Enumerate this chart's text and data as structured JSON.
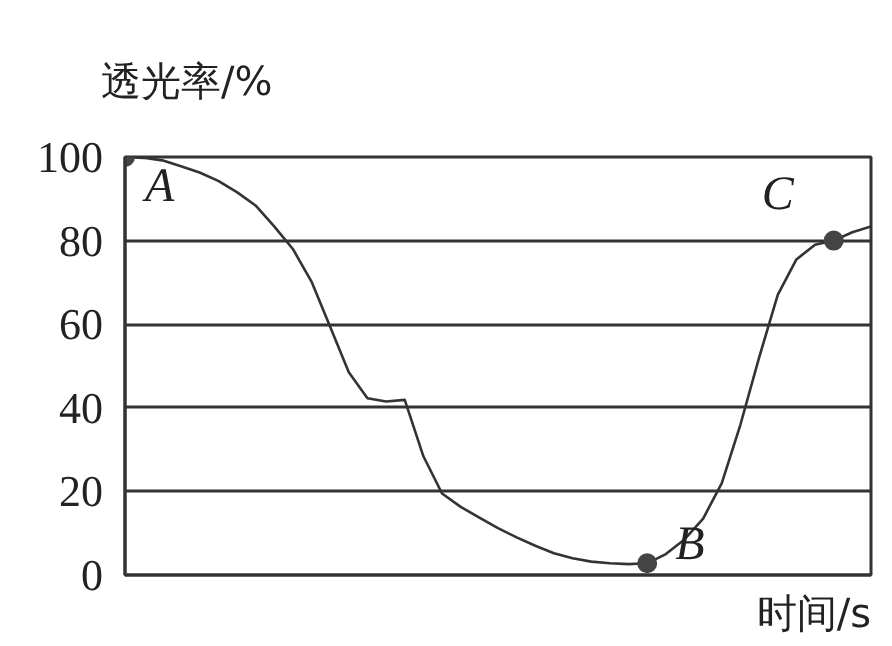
{
  "chart_data": {
    "type": "line",
    "xlabel": "时间/s",
    "ylabel": "透光率/%",
    "categories": [
      null,
      null,
      null,
      null,
      null,
      null,
      null,
      null,
      null,
      null,
      null,
      null,
      null,
      null,
      null,
      null,
      null,
      null,
      null,
      null,
      null,
      null,
      null,
      null,
      null,
      null,
      null,
      null,
      null,
      null,
      null,
      null,
      null,
      null,
      null,
      null,
      null,
      null,
      null,
      null,
      null
    ],
    "ylim": [
      0,
      100
    ],
    "yticks": [
      0,
      20,
      40,
      60,
      80,
      100
    ],
    "tick_labels": "y",
    "grid": "y",
    "line_style": "solid",
    "series": [
      {
        "color": "#333333",
        "values": [
          100,
          99.8,
          99.2,
          97.8,
          96.3,
          94.3,
          91.6,
          88.4,
          83.4,
          78,
          70.2,
          59.4,
          48.5,
          42.3,
          41.5,
          41.9,
          28.4,
          19.5,
          16.3,
          13.7,
          11.2,
          9,
          7,
          5.2,
          4,
          3.2,
          2.8,
          2.6,
          2.8,
          5,
          8.5,
          13.5,
          22,
          36,
          52,
          67,
          75.5,
          79,
          80,
          82,
          83.4
        ]
      },
      {
        "type": "scatter",
        "color": "#444444",
        "marker": "circle",
        "values": [
          100,
          null,
          null,
          null,
          null,
          null,
          null,
          null,
          null,
          null,
          null,
          null,
          null,
          null,
          null,
          null,
          null,
          null,
          null,
          null,
          null,
          null,
          null,
          null,
          null,
          null,
          null,
          null,
          2.8,
          null,
          null,
          null,
          null,
          null,
          null,
          null,
          null,
          null,
          80,
          null,
          null
        ]
      }
    ],
    "annotations": [
      "A",
      "B",
      "C"
    ]
  }
}
